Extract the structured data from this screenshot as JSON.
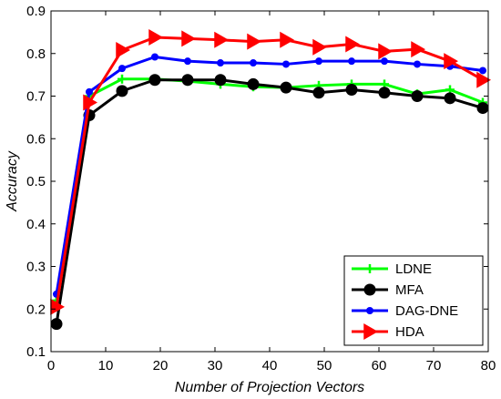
{
  "chart_data": {
    "type": "line",
    "title": "",
    "xlabel": "Number of Projection Vectors",
    "ylabel": "Accuracy",
    "xlim": [
      0,
      80
    ],
    "ylim": [
      0.1,
      0.9
    ],
    "xticks": [
      0,
      10,
      20,
      30,
      40,
      50,
      60,
      70,
      80
    ],
    "yticks": [
      0.1,
      0.2,
      0.3,
      0.4,
      0.5,
      0.6,
      0.7,
      0.8,
      0.9
    ],
    "xtick_labels": [
      "0",
      "10",
      "20",
      "30",
      "40",
      "50",
      "60",
      "70",
      "80"
    ],
    "ytick_labels": [
      "0.1",
      "0.2",
      "0.3",
      "0.4",
      "0.5",
      "0.6",
      "0.7",
      "0.8",
      "0.9"
    ],
    "grid": false,
    "legend_position": "bottom-right",
    "x": [
      1,
      7,
      13,
      19,
      25,
      31,
      37,
      43,
      49,
      55,
      61,
      67,
      73,
      79
    ],
    "series": [
      {
        "name": "LDNE",
        "color": "#00ff00",
        "marker": "plus",
        "values": [
          0.22,
          0.7,
          0.74,
          0.74,
          0.735,
          0.728,
          0.722,
          0.72,
          0.725,
          0.728,
          0.728,
          0.705,
          0.715,
          0.685
        ]
      },
      {
        "name": "MFA",
        "color": "#000000",
        "marker": "circle",
        "values": [
          0.165,
          0.655,
          0.712,
          0.738,
          0.738,
          0.738,
          0.728,
          0.72,
          0.708,
          0.715,
          0.708,
          0.7,
          0.695,
          0.672
        ]
      },
      {
        "name": "DAG-DNE",
        "color": "#0000ff",
        "marker": "dot",
        "values": [
          0.235,
          0.71,
          0.765,
          0.792,
          0.782,
          0.778,
          0.778,
          0.775,
          0.782,
          0.782,
          0.782,
          0.775,
          0.77,
          0.76
        ]
      },
      {
        "name": "HDA",
        "color": "#ff0000",
        "marker": "triangle-right",
        "values": [
          0.205,
          0.685,
          0.808,
          0.838,
          0.835,
          0.832,
          0.828,
          0.832,
          0.815,
          0.822,
          0.805,
          0.81,
          0.782,
          0.738
        ]
      }
    ]
  }
}
